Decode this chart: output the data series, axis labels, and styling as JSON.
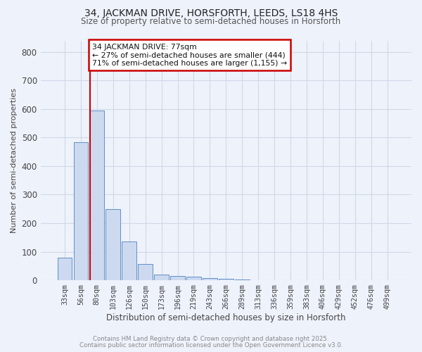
{
  "title_line1": "34, JACKMAN DRIVE, HORSFORTH, LEEDS, LS18 4HS",
  "title_line2": "Size of property relative to semi-detached houses in Horsforth",
  "xlabel": "Distribution of semi-detached houses by size in Horsforth",
  "ylabel": "Number of semi-detached properties",
  "bar_labels": [
    "33sqm",
    "56sqm",
    "80sqm",
    "103sqm",
    "126sqm",
    "150sqm",
    "173sqm",
    "196sqm",
    "219sqm",
    "243sqm",
    "266sqm",
    "289sqm",
    "313sqm",
    "336sqm",
    "359sqm",
    "383sqm",
    "406sqm",
    "429sqm",
    "452sqm",
    "476sqm",
    "499sqm"
  ],
  "bar_heights": [
    80,
    483,
    595,
    250,
    135,
    57,
    20,
    15,
    12,
    8,
    5,
    2,
    1,
    1,
    0,
    0,
    0,
    0,
    0,
    0,
    0
  ],
  "bar_color": "#ccd9ee",
  "bar_edge_color": "#6090c8",
  "grid_color": "#d0d8e8",
  "background_color": "#eef2fb",
  "red_line_index": 2,
  "annotation_text": "34 JACKMAN DRIVE: 77sqm\n← 27% of semi-detached houses are smaller (444)\n71% of semi-detached houses are larger (1,155) →",
  "annotation_box_color": "#ffffff",
  "annotation_box_edge": "#cc0000",
  "footer_line1": "Contains HM Land Registry data © Crown copyright and database right 2025.",
  "footer_line2": "Contains public sector information licensed under the Open Government Licence v3.0.",
  "ylim": [
    0,
    840
  ],
  "yticks": [
    0,
    100,
    200,
    300,
    400,
    500,
    600,
    700,
    800
  ]
}
